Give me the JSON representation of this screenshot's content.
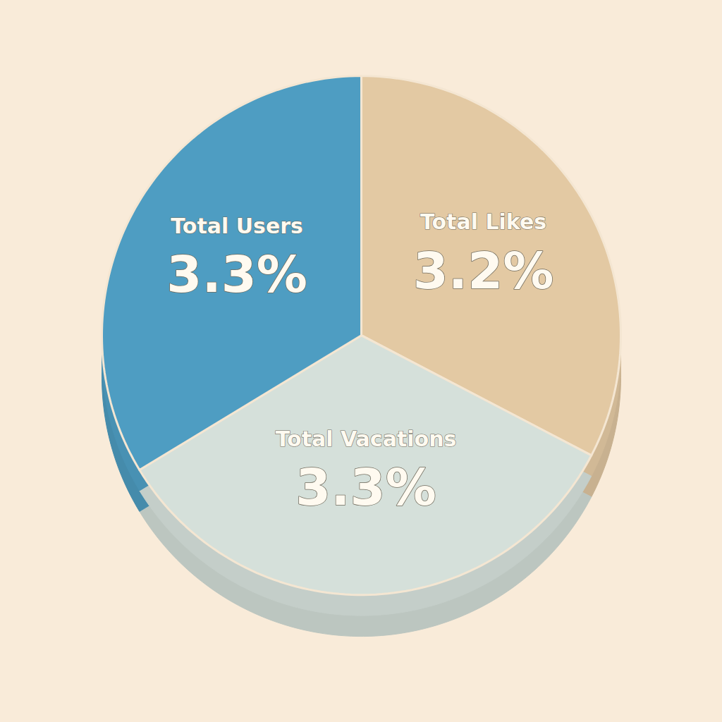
{
  "chart_data": {
    "type": "pie",
    "categories": [
      "Total Likes",
      "Total Vacations",
      "Total Users"
    ],
    "values": [
      3.2,
      3.3,
      3.3
    ],
    "value_labels": [
      "3.2%",
      "3.3%",
      "3.3%"
    ],
    "colors": [
      "#e3c9a3",
      "#d5e0da",
      "#4e9dc2"
    ],
    "data_labels": true
  }
}
